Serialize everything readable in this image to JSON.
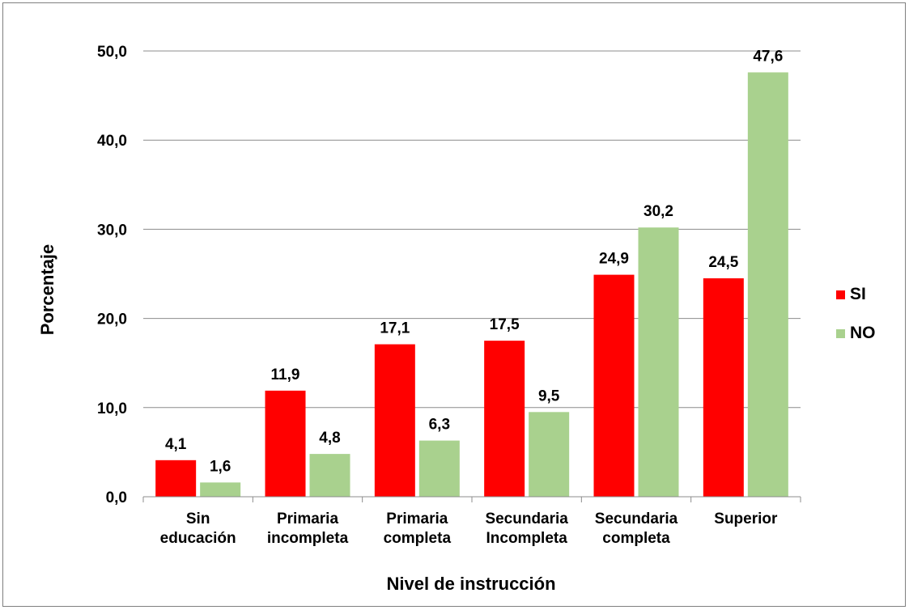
{
  "chart_data": {
    "type": "bar",
    "categories": [
      [
        "Sin",
        "educación"
      ],
      [
        "Primaria",
        "incompleta"
      ],
      [
        "Primaria",
        "completa"
      ],
      [
        "Secundaria",
        "Incompleta"
      ],
      [
        "Secundaria",
        "completa"
      ],
      [
        "Superior"
      ]
    ],
    "series": [
      {
        "name": "SI",
        "color": "#ff0000",
        "values": [
          4.1,
          11.9,
          17.1,
          17.5,
          24.9,
          24.5
        ],
        "labels": [
          "4,1",
          "11,9",
          "17,1",
          "17,5",
          "24,9",
          "24,5"
        ]
      },
      {
        "name": "NO",
        "color": "#a9d18e",
        "values": [
          1.6,
          4.8,
          6.3,
          9.5,
          30.2,
          47.6
        ],
        "labels": [
          "1,6",
          "4,8",
          "6,3",
          "9,5",
          "30,2",
          "47,6"
        ]
      }
    ],
    "xlabel": "Nivel de instrucción",
    "ylabel": "Porcentaje",
    "ylim": [
      0,
      50
    ],
    "yticks": [
      0,
      10,
      20,
      30,
      40,
      50
    ],
    "ytick_labels": [
      "0,0",
      "10,0",
      "20,0",
      "30,0",
      "40,0",
      "50,0"
    ],
    "grid": true,
    "legend_position": "right"
  }
}
